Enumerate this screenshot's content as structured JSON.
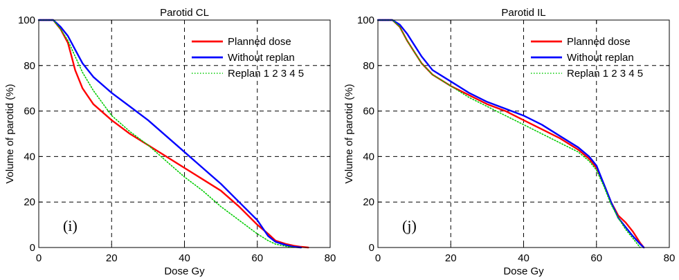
{
  "colors": {
    "planned": "#ff0000",
    "without_replan": "#0000ff",
    "replan": "#00cc00"
  },
  "chart_data": [
    {
      "type": "line",
      "title": "Parotid CL",
      "xlabel": "Dose Gy",
      "ylabel": "Volume of parotid (%)",
      "xlim": [
        0,
        80
      ],
      "ylim": [
        0,
        100
      ],
      "xticks": [
        "0",
        "20",
        "40",
        "60",
        "80"
      ],
      "yticks": [
        "0",
        "20",
        "40",
        "60",
        "80",
        "100"
      ],
      "grid": true,
      "legend_position": "top-right",
      "panel_label": "(i)",
      "series": [
        {
          "name": "Planned dose",
          "color": "#ff0000",
          "style": "solid",
          "x": [
            0,
            4,
            6,
            8,
            9,
            10,
            12,
            15,
            20,
            25,
            30,
            35,
            40,
            45,
            50,
            55,
            60,
            63,
            65,
            68,
            70,
            72,
            74
          ],
          "y": [
            100,
            100,
            96,
            90,
            84,
            78,
            70,
            63,
            56,
            50,
            45,
            40,
            35,
            30,
            25,
            18,
            10,
            6,
            3,
            1.5,
            0.8,
            0.3,
            0
          ]
        },
        {
          "name": "Without replan",
          "color": "#0000ff",
          "style": "solid",
          "x": [
            0,
            4,
            6,
            8,
            10,
            12,
            15,
            20,
            25,
            30,
            35,
            40,
            45,
            50,
            55,
            60,
            63,
            65,
            68,
            70,
            72
          ],
          "y": [
            100,
            100,
            97,
            93,
            87,
            81,
            75,
            68,
            62,
            56,
            49,
            42,
            35,
            28,
            20,
            12,
            5,
            2.5,
            1,
            0.3,
            0
          ]
        },
        {
          "name": "Replan 1 2 3 4 5",
          "color": "#00cc00",
          "style": "dotted",
          "x": [
            0,
            4,
            6,
            8,
            10,
            12,
            15,
            20,
            25,
            30,
            35,
            40,
            45,
            50,
            55,
            60,
            63,
            65,
            68,
            70
          ],
          "y": [
            100,
            100,
            96,
            91,
            84,
            77,
            69,
            58,
            51,
            45,
            38,
            31,
            25,
            18,
            12,
            6,
            3,
            1.5,
            0.5,
            0
          ]
        }
      ]
    },
    {
      "type": "line",
      "title": "Parotid IL",
      "xlabel": "Dose Gy",
      "ylabel": "Volume of parotid (%)",
      "xlim": [
        0,
        80
      ],
      "ylim": [
        0,
        100
      ],
      "xticks": [
        "0",
        "20",
        "40",
        "60",
        "80"
      ],
      "yticks": [
        "0",
        "20",
        "40",
        "60",
        "80",
        "100"
      ],
      "grid": true,
      "legend_position": "top-right",
      "panel_label": "(j)",
      "series": [
        {
          "name": "Planned dose",
          "color": "#ff0000",
          "style": "solid",
          "x": [
            0,
            4,
            6,
            8,
            10,
            12,
            15,
            20,
            25,
            30,
            35,
            40,
            45,
            50,
            55,
            58,
            60,
            62,
            64,
            66,
            68,
            70,
            72,
            73
          ],
          "y": [
            100,
            100,
            97,
            91,
            86,
            81,
            76,
            71,
            67,
            63,
            60,
            56,
            52,
            48,
            43,
            39,
            35,
            28,
            20,
            14,
            11,
            7,
            2,
            0
          ]
        },
        {
          "name": "Without replan",
          "color": "#0000ff",
          "style": "solid",
          "x": [
            0,
            4,
            6,
            8,
            10,
            12,
            15,
            20,
            25,
            30,
            35,
            40,
            45,
            50,
            55,
            58,
            60,
            62,
            64,
            66,
            68,
            70,
            72,
            73
          ],
          "y": [
            100,
            100,
            98,
            94,
            89,
            84,
            78,
            73,
            68,
            64,
            61,
            58,
            54,
            49,
            44,
            40,
            36,
            28,
            20,
            13,
            9,
            5,
            1.5,
            0
          ]
        },
        {
          "name": "Replan 1 2 3 4 5",
          "color": "#00cc00",
          "style": "dotted",
          "x": [
            0,
            4,
            6,
            8,
            10,
            12,
            15,
            20,
            25,
            30,
            35,
            40,
            45,
            50,
            55,
            58,
            60,
            62,
            64,
            66,
            68,
            70,
            72
          ],
          "y": [
            100,
            100,
            97,
            91,
            86,
            81,
            76,
            71,
            66,
            62,
            58,
            54,
            50,
            46,
            42,
            38,
            34,
            27,
            19,
            13,
            8,
            4,
            0
          ]
        }
      ]
    }
  ]
}
